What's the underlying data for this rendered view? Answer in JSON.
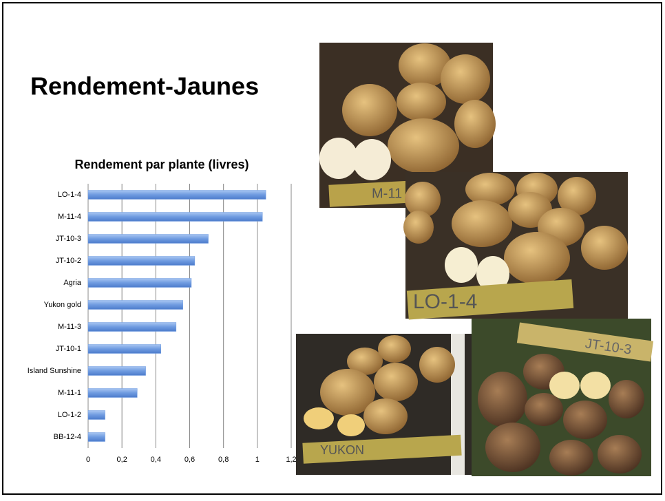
{
  "slide_title": "Rendement-Jaunes",
  "chart_data": {
    "type": "hbar",
    "title": "Rendement par plante (livres)",
    "categories": [
      "LO-1-4",
      "M-11-4",
      "JT-10-3",
      "JT-10-2",
      "Agria",
      "Yukon gold",
      "M-11-3",
      "JT-10-1",
      "Island Sunshine",
      "M-11-1",
      "LO-1-2",
      "BB-12-4"
    ],
    "values": [
      1.05,
      1.03,
      0.71,
      0.63,
      0.61,
      0.56,
      0.52,
      0.43,
      0.34,
      0.29,
      0.1,
      0.1
    ],
    "color": "#6f9be0",
    "xlim": [
      0,
      1.2
    ],
    "xticks": [
      0,
      {
        "value": 0.2,
        "label": "0,2"
      },
      {
        "value": 0.4,
        "label": "0,4"
      },
      {
        "value": 0.6,
        "label": "0,6"
      },
      {
        "value": 0.8,
        "label": "0,8"
      },
      1,
      {
        "value": 1.2,
        "label": "1,2"
      }
    ],
    "grid": true
  },
  "photos": [
    {
      "label": "M-11"
    },
    {
      "label": "LO-1-4"
    },
    {
      "label": "YUKON"
    },
    {
      "label": "JT-10-3"
    }
  ]
}
